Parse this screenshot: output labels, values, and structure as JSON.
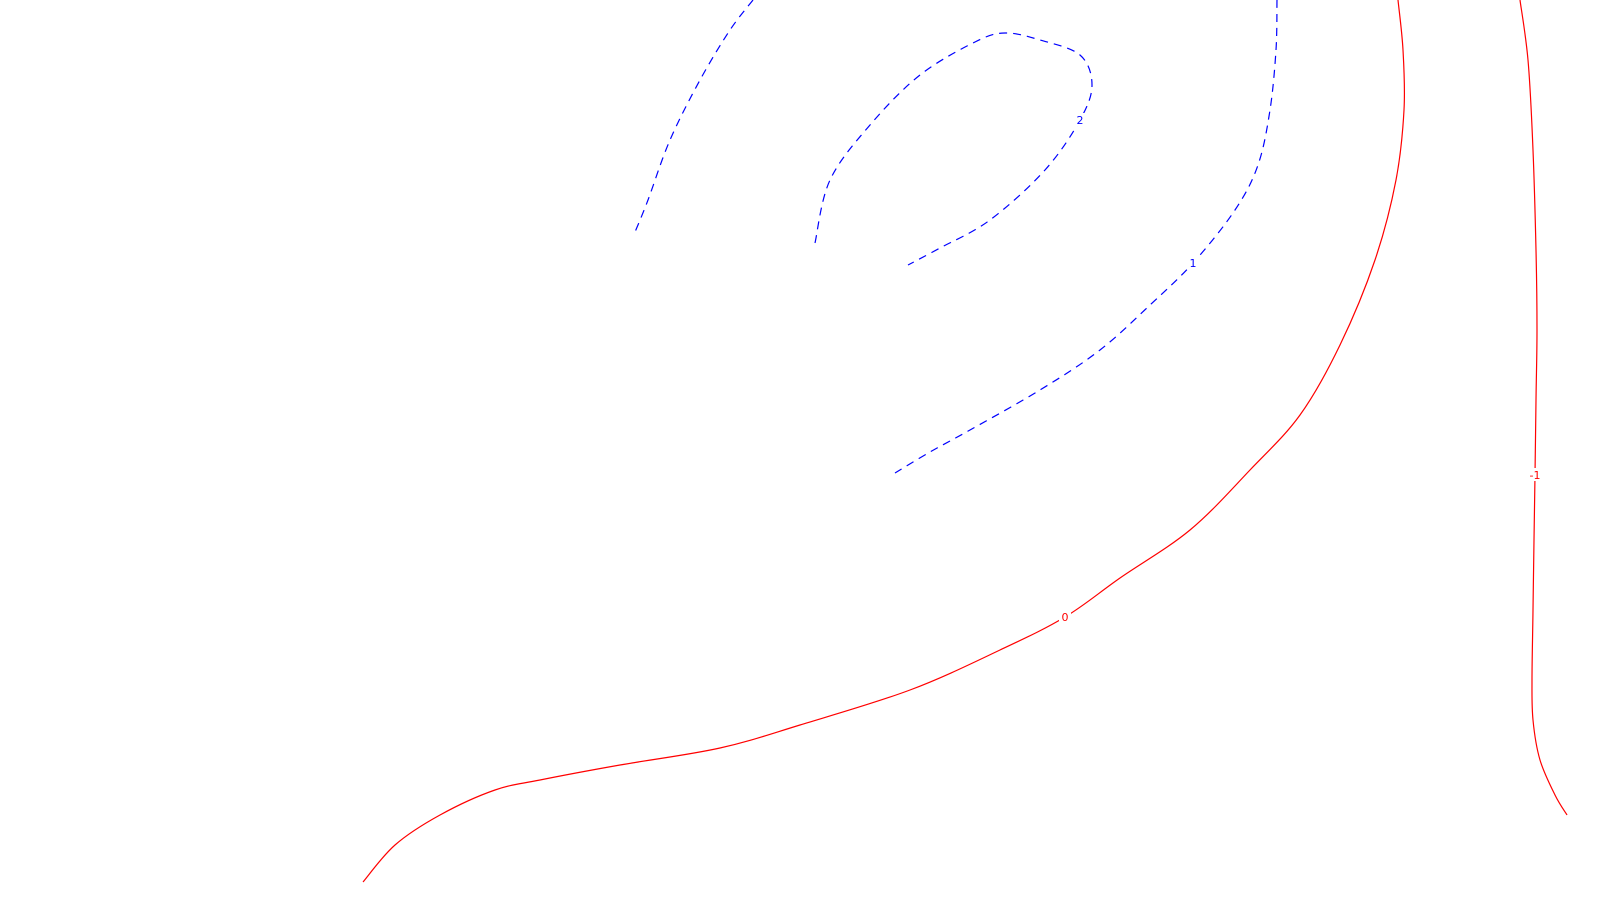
{
  "chart_data": {
    "type": "contour",
    "title": "",
    "xlabel": "",
    "ylabel": "",
    "grid": false,
    "legend": "none",
    "levels": [
      {
        "level": "2",
        "label": "2",
        "color": "#0000ff",
        "style": "dashed",
        "segments": [
          {
            "points": [
              [
                815,
                243
              ],
              [
                830,
                180
              ],
              [
                870,
                125
              ],
              [
                920,
                75
              ],
              [
                975,
                42
              ],
              [
                1005,
                33
              ],
              [
                1040,
                40
              ],
              [
                1080,
                55
              ],
              [
                1092,
                85
              ],
              [
                1080,
                120
              ],
              [
                1045,
                170
              ],
              [
                990,
                220
              ],
              [
                940,
                248
              ],
              [
                908,
                265
              ]
            ],
            "label_at": [
              1080,
              120
            ]
          }
        ]
      },
      {
        "level": "1",
        "label": "1",
        "color": "#0000ff",
        "style": "dashed",
        "segments": [
          {
            "points": [
              [
                1277,
                0
              ],
              [
                1276,
                50
              ],
              [
                1270,
                110
              ],
              [
                1258,
                165
              ],
              [
                1235,
                210
              ],
              [
                1193,
                263
              ],
              [
                1150,
                305
              ],
              [
                1100,
                350
              ],
              [
                1040,
                390
              ],
              [
                970,
                430
              ],
              [
                930,
                452
              ],
              [
                895,
                473
              ]
            ],
            "label_at": [
              1193,
              263
            ]
          },
          {
            "points": [
              [
                753,
                0
              ],
              [
                730,
                30
              ],
              [
                700,
                80
              ],
              [
                670,
                140
              ],
              [
                648,
                200
              ],
              [
                635,
                232
              ]
            ],
            "label_at": null
          }
        ]
      },
      {
        "level": "0",
        "label": "0",
        "color": "#ff0000",
        "style": "solid",
        "segments": [
          {
            "points": [
              [
                1398,
                0
              ],
              [
                1403,
                50
              ],
              [
                1404,
                110
              ],
              [
                1396,
                180
              ],
              [
                1375,
                260
              ],
              [
                1340,
                345
              ],
              [
                1300,
                415
              ],
              [
                1250,
                470
              ],
              [
                1190,
                530
              ],
              [
                1120,
                578
              ],
              [
                1065,
                617
              ],
              [
                1000,
                650
              ],
              [
                910,
                690
              ],
              [
                800,
                725
              ],
              [
                720,
                748
              ],
              [
                620,
                765
              ],
              [
                540,
                780
              ],
              [
                495,
                790
              ],
              [
                440,
                815
              ],
              [
                395,
                845
              ],
              [
                363,
                882
              ]
            ],
            "label_at": [
              1065,
              617
            ]
          }
        ]
      },
      {
        "level": "-1",
        "label": "-1",
        "color": "#ff0000",
        "style": "solid",
        "segments": [
          {
            "points": [
              [
                1520,
                0
              ],
              [
                1528,
                60
              ],
              [
                1533,
                150
              ],
              [
                1536,
                250
              ],
              [
                1537,
                330
              ],
              [
                1536,
                400
              ],
              [
                1535,
                475
              ],
              [
                1534,
                540
              ],
              [
                1533,
                610
              ],
              [
                1532,
                680
              ],
              [
                1533,
                720
              ],
              [
                1540,
                760
              ],
              [
                1555,
                795
              ],
              [
                1567,
                815
              ]
            ],
            "label_at": [
              1535,
              475
            ]
          }
        ]
      }
    ]
  }
}
